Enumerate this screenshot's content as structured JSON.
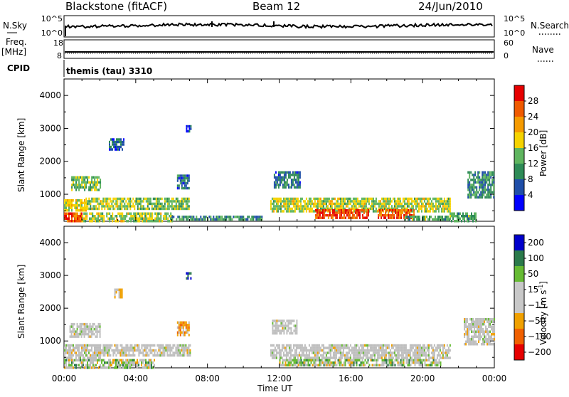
{
  "header": {
    "title": "Blackstone (fitACF)",
    "beam": "Beam 12",
    "date": "24/Jun/2010"
  },
  "top_panels": {
    "nsky_label": "N.Sky",
    "nsky_ticks": [
      "10^5",
      "10^0"
    ],
    "nsearch_label": "N.Search",
    "freq_label": "Freq.",
    "freq_unit": "[MHz]",
    "freq_ticks": [
      "18",
      "8"
    ],
    "nave_label": "Nave",
    "nave_ticks": [
      "60",
      "0"
    ],
    "cpid_label": "CPID",
    "cpid_text": "themis (tau) 3310"
  },
  "colors": {
    "power_scale": [
      "#0000ff",
      "#1f4ea8",
      "#2e8b57",
      "#5fb55f",
      "#f5d300",
      "#f59a00",
      "#f05a00",
      "#e60000"
    ],
    "velocity_scale": [
      "#0000cc",
      "#2b7a4b",
      "#66bb33",
      "#c8c8c8",
      "#c8c8c8",
      "#f0a000",
      "#f06000",
      "#e60000"
    ],
    "ground_scatter": "#bebebe"
  },
  "chart_data": [
    {
      "type": "heatmap",
      "title": "",
      "ylabel": "Slant Range [km]",
      "xlabel": "",
      "x_ticks": [
        "00:00",
        "04:00",
        "08:00",
        "12:00",
        "16:00",
        "20:00",
        "00:00"
      ],
      "xlim_hours": [
        0,
        24
      ],
      "y_ticks": [
        "1000",
        "2000",
        "3000",
        "4000"
      ],
      "ylim_km": [
        180,
        4500
      ],
      "colorbar": {
        "label": "Power [dB]",
        "ticks": [
          "4",
          "8",
          "12",
          "16",
          "20",
          "24",
          "28"
        ],
        "range": [
          0,
          32
        ]
      },
      "regions": [
        {
          "t0": 0.0,
          "t1": 1.0,
          "r0": 200,
          "r1": 450,
          "level": 26
        },
        {
          "t0": 0.0,
          "t1": 1.2,
          "r0": 500,
          "r1": 850,
          "level": 18
        },
        {
          "t0": 0.4,
          "t1": 2.0,
          "r0": 1150,
          "r1": 1550,
          "level": 14
        },
        {
          "t0": 1.2,
          "t1": 4.0,
          "r0": 550,
          "r1": 900,
          "level": 16
        },
        {
          "t0": 4.0,
          "t1": 7.0,
          "r0": 550,
          "r1": 900,
          "level": 14
        },
        {
          "t0": 1.0,
          "t1": 6.0,
          "r0": 200,
          "r1": 450,
          "level": 16
        },
        {
          "t0": 6.0,
          "t1": 11.0,
          "r0": 200,
          "r1": 350,
          "level": 10
        },
        {
          "t0": 2.5,
          "t1": 3.3,
          "r0": 2350,
          "r1": 2700,
          "level": 6
        },
        {
          "t0": 6.8,
          "t1": 7.1,
          "r0": 2900,
          "r1": 3100,
          "level": 4
        },
        {
          "t0": 6.3,
          "t1": 7.0,
          "r0": 1200,
          "r1": 1600,
          "level": 8
        },
        {
          "t0": 11.7,
          "t1": 13.2,
          "r0": 1200,
          "r1": 1700,
          "level": 8
        },
        {
          "t0": 11.5,
          "t1": 21.5,
          "r0": 450,
          "r1": 900,
          "level": 16
        },
        {
          "t0": 14.0,
          "t1": 17.0,
          "r0": 250,
          "r1": 550,
          "level": 28
        },
        {
          "t0": 17.5,
          "t1": 19.5,
          "r0": 280,
          "r1": 550,
          "level": 26
        },
        {
          "t0": 19.0,
          "t1": 21.5,
          "r0": 200,
          "r1": 350,
          "level": 12
        },
        {
          "t0": 22.5,
          "t1": 24.0,
          "r0": 900,
          "r1": 1700,
          "level": 10
        },
        {
          "t0": 21.5,
          "t1": 23.0,
          "r0": 200,
          "r1": 450,
          "level": 12
        }
      ]
    },
    {
      "type": "heatmap",
      "title": "",
      "ylabel": "Slant Range [km]",
      "xlabel": "Time UT",
      "x_ticks": [
        "00:00",
        "04:00",
        "08:00",
        "12:00",
        "16:00",
        "20:00",
        "00:00"
      ],
      "xlim_hours": [
        0,
        24
      ],
      "y_ticks": [
        "1000",
        "2000",
        "3000",
        "4000"
      ],
      "ylim_km": [
        180,
        4500
      ],
      "colorbar": {
        "label": "Velocity [m s",
        "label_sup": "-1",
        "label_end": "]",
        "ticks": [
          "200",
          "100",
          "50",
          "15",
          "−15",
          "−50",
          "−100",
          "−200"
        ]
      },
      "regions": [
        {
          "t0": 0.0,
          "t1": 2.0,
          "r0": 500,
          "r1": 900,
          "kind": "gs"
        },
        {
          "t0": 0.3,
          "t1": 2.0,
          "r0": 1150,
          "r1": 1550,
          "kind": "gs"
        },
        {
          "t0": 2.0,
          "t1": 7.0,
          "r0": 550,
          "r1": 900,
          "kind": "gs"
        },
        {
          "t0": 6.3,
          "t1": 7.0,
          "r0": 1200,
          "r1": 1600,
          "kind": "neg_mid"
        },
        {
          "t0": 6.8,
          "t1": 7.1,
          "r0": 2900,
          "r1": 3100,
          "kind": "pos_high"
        },
        {
          "t0": 0.0,
          "t1": 5.0,
          "r0": 200,
          "r1": 450,
          "kind": "mix_green"
        },
        {
          "t0": 2.8,
          "t1": 3.2,
          "r0": 2350,
          "r1": 2600,
          "kind": "neg_low"
        },
        {
          "t0": 11.6,
          "t1": 13.0,
          "r0": 1200,
          "r1": 1650,
          "kind": "gs"
        },
        {
          "t0": 11.5,
          "t1": 21.5,
          "r0": 450,
          "r1": 900,
          "kind": "gs"
        },
        {
          "t0": 12.0,
          "t1": 21.0,
          "r0": 250,
          "r1": 450,
          "kind": "mix_green"
        },
        {
          "t0": 22.3,
          "t1": 24.0,
          "r0": 900,
          "r1": 1700,
          "kind": "gs"
        }
      ]
    }
  ]
}
